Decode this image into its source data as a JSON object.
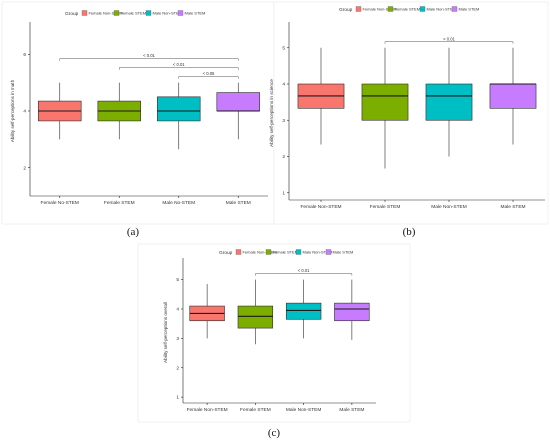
{
  "colors": {
    "female_non_stem": "#f8766d",
    "female_stem": "#7cae00",
    "male_non_stem": "#00bfc4",
    "male_stem": "#c77cff"
  },
  "chart_data": [
    {
      "type": "boxplot",
      "panel_label": "(a)",
      "legend_title": "Group",
      "legend": [
        "Female Non-STEM",
        "Female STEM",
        "Male Non-STEM",
        "Male STEM"
      ],
      "legend_placement": "top",
      "categories": [
        "Female No-STEM",
        "Female STEM",
        "Male No-STEM",
        "Male STEM"
      ],
      "ylabel": "Ability self-perceptions in math",
      "ylim": [
        1,
        7
      ],
      "yticks": [
        "2",
        "4",
        "6"
      ],
      "ytick_values": [
        2,
        4,
        6
      ],
      "boxes": [
        {
          "min": 3.0,
          "q1": 3.65,
          "median": 4.0,
          "q3": 4.35,
          "max": 5.0
        },
        {
          "min": 3.0,
          "q1": 3.65,
          "median": 4.0,
          "q3": 4.35,
          "max": 5.0
        },
        {
          "min": 2.65,
          "q1": 3.65,
          "median": 4.0,
          "q3": 4.5,
          "max": 5.0
        },
        {
          "min": 3.0,
          "q1": 4.0,
          "median": 4.0,
          "q3": 4.65,
          "max": 5.0
        }
      ],
      "significance": [
        {
          "from": 2,
          "to": 3,
          "label": "< 0.05"
        },
        {
          "from": 1,
          "to": 3,
          "label": "< 0.01"
        },
        {
          "from": 0,
          "to": 3,
          "label": "< 0.01"
        }
      ],
      "grid": false
    },
    {
      "type": "boxplot",
      "panel_label": "(b)",
      "legend_title": "Group",
      "legend": [
        "Female Non-STEM",
        "Female STEM",
        "Male Non-STEM",
        "Male STEM"
      ],
      "legend_placement": "top",
      "categories": [
        "Female Non-STEM",
        "Female STEM",
        "Male Non-STEM",
        "Male STEM"
      ],
      "ylabel": "Ability self-perceptions in science",
      "ylim": [
        0.8,
        5.6
      ],
      "yticks": [
        "1",
        "2",
        "3",
        "4",
        "5"
      ],
      "ytick_values": [
        1,
        2,
        3,
        4,
        5
      ],
      "boxes": [
        {
          "min": 2.33,
          "q1": 3.33,
          "median": 3.67,
          "q3": 4.0,
          "max": 5.0
        },
        {
          "min": 1.67,
          "q1": 3.0,
          "median": 3.67,
          "q3": 4.0,
          "max": 5.0
        },
        {
          "min": 2.0,
          "q1": 3.0,
          "median": 3.67,
          "q3": 4.0,
          "max": 5.0
        },
        {
          "min": 2.33,
          "q1": 3.33,
          "median": 4.0,
          "q3": 4.0,
          "max": 5.0
        }
      ],
      "significance": [
        {
          "from": 1,
          "to": 3,
          "label": "< 0.01"
        }
      ],
      "grid": false
    },
    {
      "type": "boxplot",
      "panel_label": "(c)",
      "legend_title": "Group",
      "legend": [
        "Female Non-STEM",
        "Female STEM",
        "Male Non-STEM",
        "Male STEM"
      ],
      "legend_placement": "top",
      "categories": [
        "Female Non-STEM",
        "Female STEM",
        "Male Non-STEM",
        "Male STEM"
      ],
      "ylabel": "Ability self-perceptions overall",
      "ylim": [
        0.8,
        5.6
      ],
      "yticks": [
        "1",
        "2",
        "3",
        "4",
        "5"
      ],
      "ytick_values": [
        1,
        2,
        3,
        4,
        5
      ],
      "boxes": [
        {
          "min": 3.0,
          "q1": 3.6,
          "median": 3.85,
          "q3": 4.1,
          "max": 4.85
        },
        {
          "min": 2.8,
          "q1": 3.35,
          "median": 3.75,
          "q3": 4.1,
          "max": 5.0
        },
        {
          "min": 3.0,
          "q1": 3.65,
          "median": 3.95,
          "q3": 4.2,
          "max": 5.0
        },
        {
          "min": 2.95,
          "q1": 3.6,
          "median": 4.0,
          "q3": 4.2,
          "max": 5.0
        }
      ],
      "significance": [
        {
          "from": 1,
          "to": 3,
          "label": "< 0.01"
        }
      ],
      "grid": false
    }
  ]
}
